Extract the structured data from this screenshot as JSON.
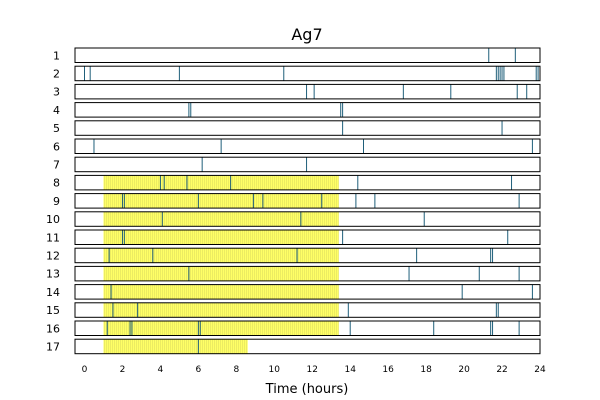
{
  "chart_data": {
    "type": "event-raster",
    "title": "Ag7",
    "xlabel": "Time (hours)",
    "xlim": [
      -0.5,
      24
    ],
    "xticks": [
      0,
      2,
      4,
      6,
      8,
      10,
      12,
      14,
      16,
      18,
      20,
      22,
      24
    ],
    "colors": {
      "highlight": "#ffff66",
      "highlight_grid": "#e0e060",
      "event": "#1f5f7a",
      "frame": "#000000"
    },
    "rows": [
      {
        "label": "1",
        "highlight": null,
        "events": [
          21.3,
          22.7
        ]
      },
      {
        "label": "2",
        "highlight": null,
        "events": [
          0.0,
          0.3,
          5.0,
          10.5,
          21.7,
          21.8,
          21.9,
          22.0,
          22.1,
          23.8,
          23.9
        ]
      },
      {
        "label": "3",
        "highlight": null,
        "events": [
          11.7,
          12.1,
          16.8,
          19.3,
          22.8,
          23.3
        ]
      },
      {
        "label": "4",
        "highlight": null,
        "events": [
          5.5,
          5.6,
          13.5,
          13.6
        ]
      },
      {
        "label": "5",
        "highlight": null,
        "events": [
          13.6,
          22.0
        ]
      },
      {
        "label": "6",
        "highlight": null,
        "events": [
          0.5,
          7.2,
          14.7,
          23.6
        ]
      },
      {
        "label": "7",
        "highlight": null,
        "events": [
          6.2,
          11.7
        ]
      },
      {
        "label": "8",
        "highlight": [
          1.0,
          13.4
        ],
        "events": [
          4.0,
          4.2,
          5.4,
          7.7,
          14.4,
          22.5
        ]
      },
      {
        "label": "9",
        "highlight": [
          1.0,
          13.4
        ],
        "events": [
          2.0,
          2.1,
          6.0,
          8.9,
          9.4,
          12.5,
          14.3,
          15.3,
          22.9
        ]
      },
      {
        "label": "10",
        "highlight": [
          1.0,
          13.4
        ],
        "events": [
          4.1,
          11.4,
          17.9
        ]
      },
      {
        "label": "11",
        "highlight": [
          1.0,
          13.4
        ],
        "events": [
          2.0,
          2.1,
          13.6,
          22.3
        ]
      },
      {
        "label": "12",
        "highlight": [
          1.0,
          13.4
        ],
        "events": [
          1.3,
          3.6,
          11.2,
          17.5,
          21.4,
          21.5
        ]
      },
      {
        "label": "13",
        "highlight": [
          1.0,
          13.4
        ],
        "events": [
          5.5,
          17.1,
          20.8,
          22.9
        ]
      },
      {
        "label": "14",
        "highlight": [
          1.0,
          13.4
        ],
        "events": [
          1.4,
          19.9,
          23.6
        ]
      },
      {
        "label": "15",
        "highlight": [
          1.0,
          13.4
        ],
        "events": [
          1.5,
          2.8,
          13.9,
          21.7,
          21.8
        ]
      },
      {
        "label": "16",
        "highlight": [
          1.0,
          13.4
        ],
        "events": [
          1.2,
          2.4,
          2.5,
          6.0,
          6.1,
          14.0,
          18.4,
          21.4,
          21.5,
          22.9
        ]
      },
      {
        "label": "17",
        "highlight": [
          1.0,
          8.6
        ],
        "events": [
          6.0
        ]
      }
    ]
  }
}
